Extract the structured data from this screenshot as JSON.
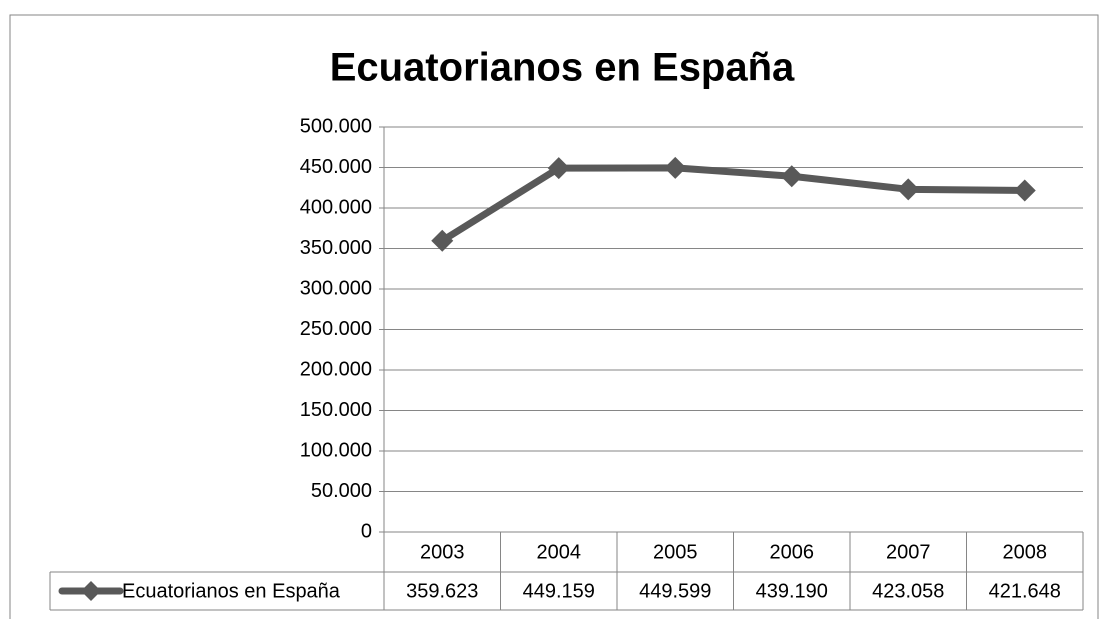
{
  "chart_data": {
    "type": "line",
    "title": "Ecuatorianos en España",
    "categories": [
      "2003",
      "2004",
      "2005",
      "2006",
      "2007",
      "2008"
    ],
    "series": [
      {
        "name": "Ecuatorianos en España",
        "color": "#595959",
        "values": [
          359623,
          449159,
          449599,
          439190,
          423058,
          421648
        ],
        "value_labels": [
          "359.623",
          "449.159",
          "449.599",
          "439.190",
          "423.058",
          "421.648"
        ]
      }
    ],
    "ylim": [
      0,
      500000
    ],
    "yticks": [
      0,
      {
        "value": 50000,
        "label": "50.000"
      },
      {
        "value": 100000,
        "label": "100.000"
      },
      {
        "value": 150000,
        "label": "150.000"
      },
      {
        "value": 200000,
        "label": "200.000"
      },
      {
        "value": 250000,
        "label": "250.000"
      },
      {
        "value": 300000,
        "label": "300.000"
      },
      {
        "value": 350000,
        "label": "350.000"
      },
      {
        "value": 400000,
        "label": "400.000"
      },
      {
        "value": 450000,
        "label": "450.000"
      },
      {
        "value": 500000,
        "label": "500.000"
      }
    ],
    "grid": true,
    "data_table": true
  }
}
